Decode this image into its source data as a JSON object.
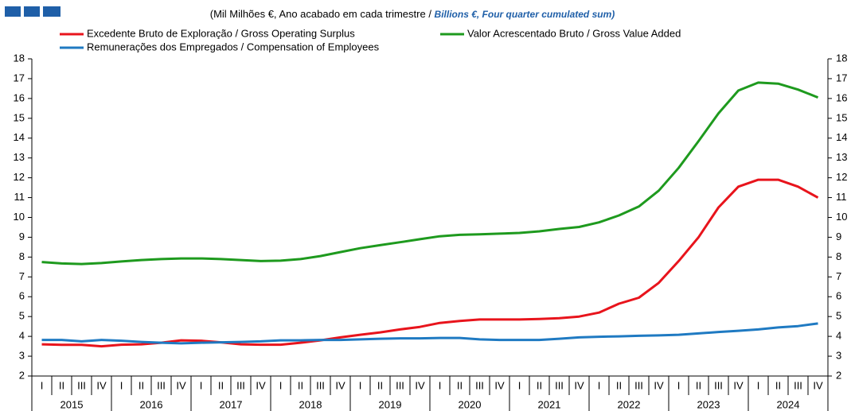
{
  "chart_data": {
    "type": "line",
    "subtitle": "(Mil Milhões €, Ano acabado em cada trimestre / ",
    "subtitle_en": "Billions €, Four quarter cumulated sum)",
    "categories": [
      "I",
      "II",
      "III",
      "IV",
      "I",
      "II",
      "III",
      "IV",
      "I",
      "II",
      "III",
      "IV",
      "I",
      "II",
      "III",
      "IV",
      "I",
      "II",
      "III",
      "IV",
      "I",
      "II",
      "III",
      "IV",
      "I",
      "II",
      "III",
      "IV",
      "I",
      "II",
      "III",
      "IV",
      "I",
      "II",
      "III",
      "IV",
      "I",
      "II",
      "III",
      "IV"
    ],
    "years": [
      "2015",
      "2016",
      "2017",
      "2018",
      "2019",
      "2020",
      "2021",
      "2022",
      "2023",
      "2024"
    ],
    "series": [
      {
        "name": "Excedente Bruto de Exploração / Gross Operating Surplus",
        "color": "#e8141c",
        "values": [
          3.6,
          3.57,
          3.57,
          3.5,
          3.58,
          3.6,
          3.68,
          3.8,
          3.78,
          3.7,
          3.6,
          3.58,
          3.58,
          3.68,
          3.8,
          3.95,
          4.08,
          4.2,
          4.35,
          4.48,
          4.68,
          4.78,
          4.85,
          4.85,
          4.85,
          4.88,
          4.92,
          5.0,
          5.2,
          5.65,
          5.95,
          6.7,
          7.8,
          9.0,
          10.5,
          11.55,
          11.9,
          11.9,
          11.55,
          11.0
        ]
      },
      {
        "name": "Valor Acrescentado Bruto / Gross Value Added",
        "color": "#1e9a1e",
        "values": [
          7.75,
          7.68,
          7.65,
          7.7,
          7.78,
          7.85,
          7.9,
          7.93,
          7.93,
          7.9,
          7.85,
          7.8,
          7.82,
          7.9,
          8.05,
          8.25,
          8.45,
          8.6,
          8.75,
          8.9,
          9.05,
          9.12,
          9.15,
          9.18,
          9.22,
          9.3,
          9.42,
          9.52,
          9.75,
          10.1,
          10.55,
          11.35,
          12.5,
          13.85,
          15.25,
          16.4,
          16.8,
          16.75,
          16.45,
          16.05
        ]
      },
      {
        "name": "Remunerações dos Empregados / Compensation of Employees",
        "color": "#1f7ac2",
        "values": [
          3.82,
          3.82,
          3.75,
          3.82,
          3.78,
          3.72,
          3.68,
          3.65,
          3.68,
          3.7,
          3.72,
          3.75,
          3.8,
          3.8,
          3.82,
          3.82,
          3.85,
          3.88,
          3.9,
          3.9,
          3.92,
          3.92,
          3.85,
          3.82,
          3.82,
          3.82,
          3.88,
          3.95,
          3.98,
          4.0,
          4.03,
          4.05,
          4.08,
          4.15,
          4.22,
          4.28,
          4.35,
          4.45,
          4.52,
          4.65
        ]
      }
    ],
    "ylim": [
      2,
      18
    ],
    "yticks": [
      2,
      3,
      4,
      5,
      6,
      7,
      8,
      9,
      10,
      11,
      12,
      13,
      14,
      15,
      16,
      17,
      18
    ],
    "y2lim": [
      2,
      18
    ],
    "y2ticks": [
      2,
      3,
      4,
      5,
      6,
      7,
      8,
      9,
      10,
      11,
      12,
      13,
      14,
      15,
      16,
      17,
      18
    ],
    "grid": false
  }
}
